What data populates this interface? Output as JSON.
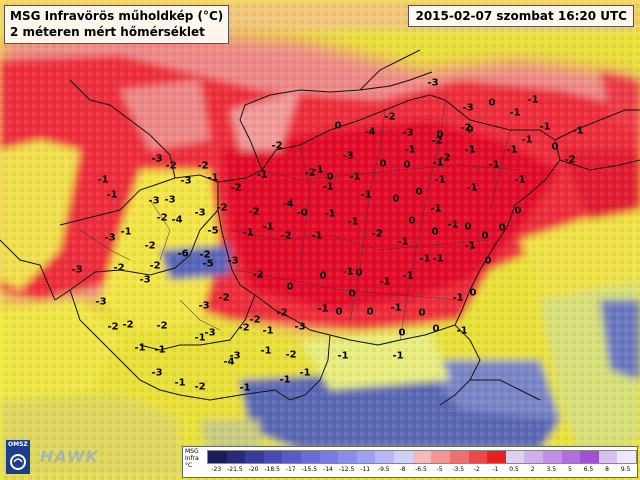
{
  "title_line1": "MSG Infravörös műholdkép (°C)",
  "title_line2": "2 méteren mért hőmérséklet",
  "timestamp": "2015-02-07 szombat 16:20 UTC",
  "logo_text": "OMSZ",
  "watermark": "HAWK",
  "legend": {
    "label_lines": [
      "MSG",
      "Infra",
      "°C"
    ],
    "ticks": [
      "-23",
      "-21.5",
      "-20",
      "-18.5",
      "-17",
      "-15.5",
      "-14",
      "-12.5",
      "-11",
      "-9.5",
      "-8",
      "-6.5",
      "-5",
      "-3.5",
      "-2",
      "-1",
      "0.5",
      "2",
      "3.5",
      "5",
      "6.5",
      "8",
      "9.5"
    ],
    "colors": [
      "#1c1c5a",
      "#2a2a7a",
      "#3a3a98",
      "#4a4ab4",
      "#5a5ac8",
      "#6a6ad8",
      "#7a7ae4",
      "#8c8cec",
      "#a0a0f0",
      "#b8b8f4",
      "#d0d0f8",
      "#f8b8b8",
      "#f49494",
      "#f07070",
      "#ec4848",
      "#e82020",
      "#e0d0f0",
      "#d0b0ec",
      "#c090e4",
      "#b070dc",
      "#a050d0",
      "#d8c0f0",
      "#f0e8fa"
    ]
  },
  "map_values": [
    [
      "-3",
      "433",
      "83"
    ],
    [
      "-3",
      "468",
      "108"
    ],
    [
      "0",
      "492",
      "103"
    ],
    [
      "-1",
      "515",
      "113"
    ],
    [
      "-1",
      "533",
      "100"
    ],
    [
      "-1",
      "545",
      "127"
    ],
    [
      "-1",
      "578",
      "131"
    ],
    [
      "-1",
      "527",
      "140"
    ],
    [
      "0",
      "555",
      "147"
    ],
    [
      "-2",
      "570",
      "160"
    ],
    [
      "-1",
      "512",
      "150"
    ],
    [
      "-1",
      "494",
      "165"
    ],
    [
      "-1",
      "520",
      "180"
    ],
    [
      "0",
      "518",
      "211"
    ],
    [
      "-2",
      "466",
      "128"
    ],
    [
      "0",
      "470",
      "130"
    ],
    [
      "0",
      "440",
      "135"
    ],
    [
      "-1",
      "470",
      "150"
    ],
    [
      "-2",
      "445",
      "158"
    ],
    [
      "-1",
      "438",
      "163"
    ],
    [
      "-2",
      "390",
      "117"
    ],
    [
      "-4",
      "370",
      "132"
    ],
    [
      "-3",
      "408",
      "133"
    ],
    [
      "-2",
      "437",
      "141"
    ],
    [
      "-1",
      "410",
      "150"
    ],
    [
      "0",
      "383",
      "164"
    ],
    [
      "0",
      "407",
      "165"
    ],
    [
      "-1",
      "440",
      "180"
    ],
    [
      "-1",
      "472",
      "188"
    ],
    [
      "-1",
      "355",
      "177"
    ],
    [
      "0",
      "330",
      "177"
    ],
    [
      "0",
      "338",
      "126"
    ],
    [
      "-3",
      "348",
      "156"
    ],
    [
      "-1",
      "318",
      "170"
    ],
    [
      "-2",
      "310",
      "173"
    ],
    [
      "-1",
      "328",
      "187"
    ],
    [
      "-1",
      "366",
      "195"
    ],
    [
      "0",
      "396",
      "199"
    ],
    [
      "0",
      "419",
      "192"
    ],
    [
      "-1",
      "436",
      "209"
    ],
    [
      "0",
      "412",
      "221"
    ],
    [
      "0",
      "435",
      "232"
    ],
    [
      "-1",
      "453",
      "225"
    ],
    [
      "0",
      "468",
      "227"
    ],
    [
      "0",
      "485",
      "236"
    ],
    [
      "0",
      "502",
      "228"
    ],
    [
      "-1",
      "470",
      "246"
    ],
    [
      "-1",
      "438",
      "259"
    ],
    [
      "-1",
      "403",
      "242"
    ],
    [
      "-2",
      "377",
      "234"
    ],
    [
      "-1",
      "353",
      "222"
    ],
    [
      "-1",
      "330",
      "214"
    ],
    [
      "-2",
      "277",
      "146"
    ],
    [
      "-1",
      "262",
      "175"
    ],
    [
      "-2",
      "236",
      "188"
    ],
    [
      "-4",
      "288",
      "204"
    ],
    [
      "-2",
      "254",
      "212"
    ],
    [
      "-1",
      "268",
      "227"
    ],
    [
      "-0",
      "302",
      "213"
    ],
    [
      "-1",
      "248",
      "233"
    ],
    [
      "-2",
      "258",
      "275"
    ],
    [
      "-1",
      "317",
      "236"
    ],
    [
      "-2",
      "286",
      "236"
    ],
    [
      "0",
      "323",
      "276"
    ],
    [
      "-1",
      "348",
      "272"
    ],
    [
      "0",
      "359",
      "273"
    ],
    [
      "-1",
      "385",
      "282"
    ],
    [
      "-1",
      "408",
      "276"
    ],
    [
      "-1",
      "425",
      "259"
    ],
    [
      "0",
      "488",
      "261"
    ],
    [
      "0",
      "473",
      "293"
    ],
    [
      "-1",
      "458",
      "298"
    ],
    [
      "0",
      "352",
      "294"
    ],
    [
      "0",
      "290",
      "287"
    ],
    [
      "-2",
      "282",
      "313"
    ],
    [
      "-3",
      "200",
      "213"
    ],
    [
      "-2",
      "222",
      "208"
    ],
    [
      "-5",
      "213",
      "231"
    ],
    [
      "-2",
      "205",
      "255"
    ],
    [
      "-6",
      "183",
      "254"
    ],
    [
      "-3",
      "233",
      "261"
    ],
    [
      "-1",
      "323",
      "309"
    ],
    [
      "0",
      "339",
      "312"
    ],
    [
      "0",
      "370",
      "312"
    ],
    [
      "-1",
      "396",
      "308"
    ],
    [
      "0",
      "422",
      "313"
    ],
    [
      "0",
      "402",
      "333"
    ],
    [
      "0",
      "436",
      "329"
    ],
    [
      "-1",
      "462",
      "331"
    ],
    [
      "-3",
      "300",
      "327"
    ],
    [
      "-1",
      "268",
      "331"
    ],
    [
      "-2",
      "255",
      "320"
    ],
    [
      "-2",
      "224",
      "298"
    ],
    [
      "-3",
      "204",
      "306"
    ],
    [
      "-5",
      "208",
      "264"
    ],
    [
      "-3",
      "157",
      "159"
    ],
    [
      "-2",
      "171",
      "166"
    ],
    [
      "-2",
      "203",
      "166"
    ],
    [
      "-3",
      "186",
      "181"
    ],
    [
      "-1",
      "213",
      "178"
    ],
    [
      "-3",
      "154",
      "201"
    ],
    [
      "-3",
      "170",
      "200"
    ],
    [
      "-2",
      "162",
      "218"
    ],
    [
      "-4",
      "177",
      "220"
    ],
    [
      "-2",
      "150",
      "246"
    ],
    [
      "-2",
      "155",
      "266"
    ],
    [
      "-3",
      "145",
      "280"
    ],
    [
      "-3",
      "110",
      "238"
    ],
    [
      "-1",
      "126",
      "232"
    ],
    [
      "-1",
      "103",
      "180"
    ],
    [
      "-1",
      "112",
      "195"
    ],
    [
      "-3",
      "77",
      "270"
    ],
    [
      "-2",
      "119",
      "268"
    ],
    [
      "-3",
      "101",
      "302"
    ],
    [
      "-2",
      "113",
      "327"
    ],
    [
      "-2",
      "128",
      "325"
    ],
    [
      "-2",
      "162",
      "326"
    ],
    [
      "-1",
      "140",
      "348"
    ],
    [
      "-1",
      "160",
      "350"
    ],
    [
      "-3",
      "157",
      "373"
    ],
    [
      "-2",
      "200",
      "387"
    ],
    [
      "-1",
      "180",
      "383"
    ],
    [
      "-1",
      "245",
      "388"
    ],
    [
      "-2",
      "244",
      "328"
    ],
    [
      "-1",
      "266",
      "351"
    ],
    [
      "-3",
      "235",
      "356"
    ],
    [
      "-4",
      "229",
      "362"
    ],
    [
      "-2",
      "291",
      "355"
    ],
    [
      "-1",
      "305",
      "373"
    ],
    [
      "-1",
      "285",
      "380"
    ],
    [
      "-1",
      "343",
      "356"
    ],
    [
      "-1",
      "398",
      "356"
    ],
    [
      "-3",
      "210",
      "333"
    ],
    [
      "-1",
      "200",
      "338"
    ]
  ]
}
